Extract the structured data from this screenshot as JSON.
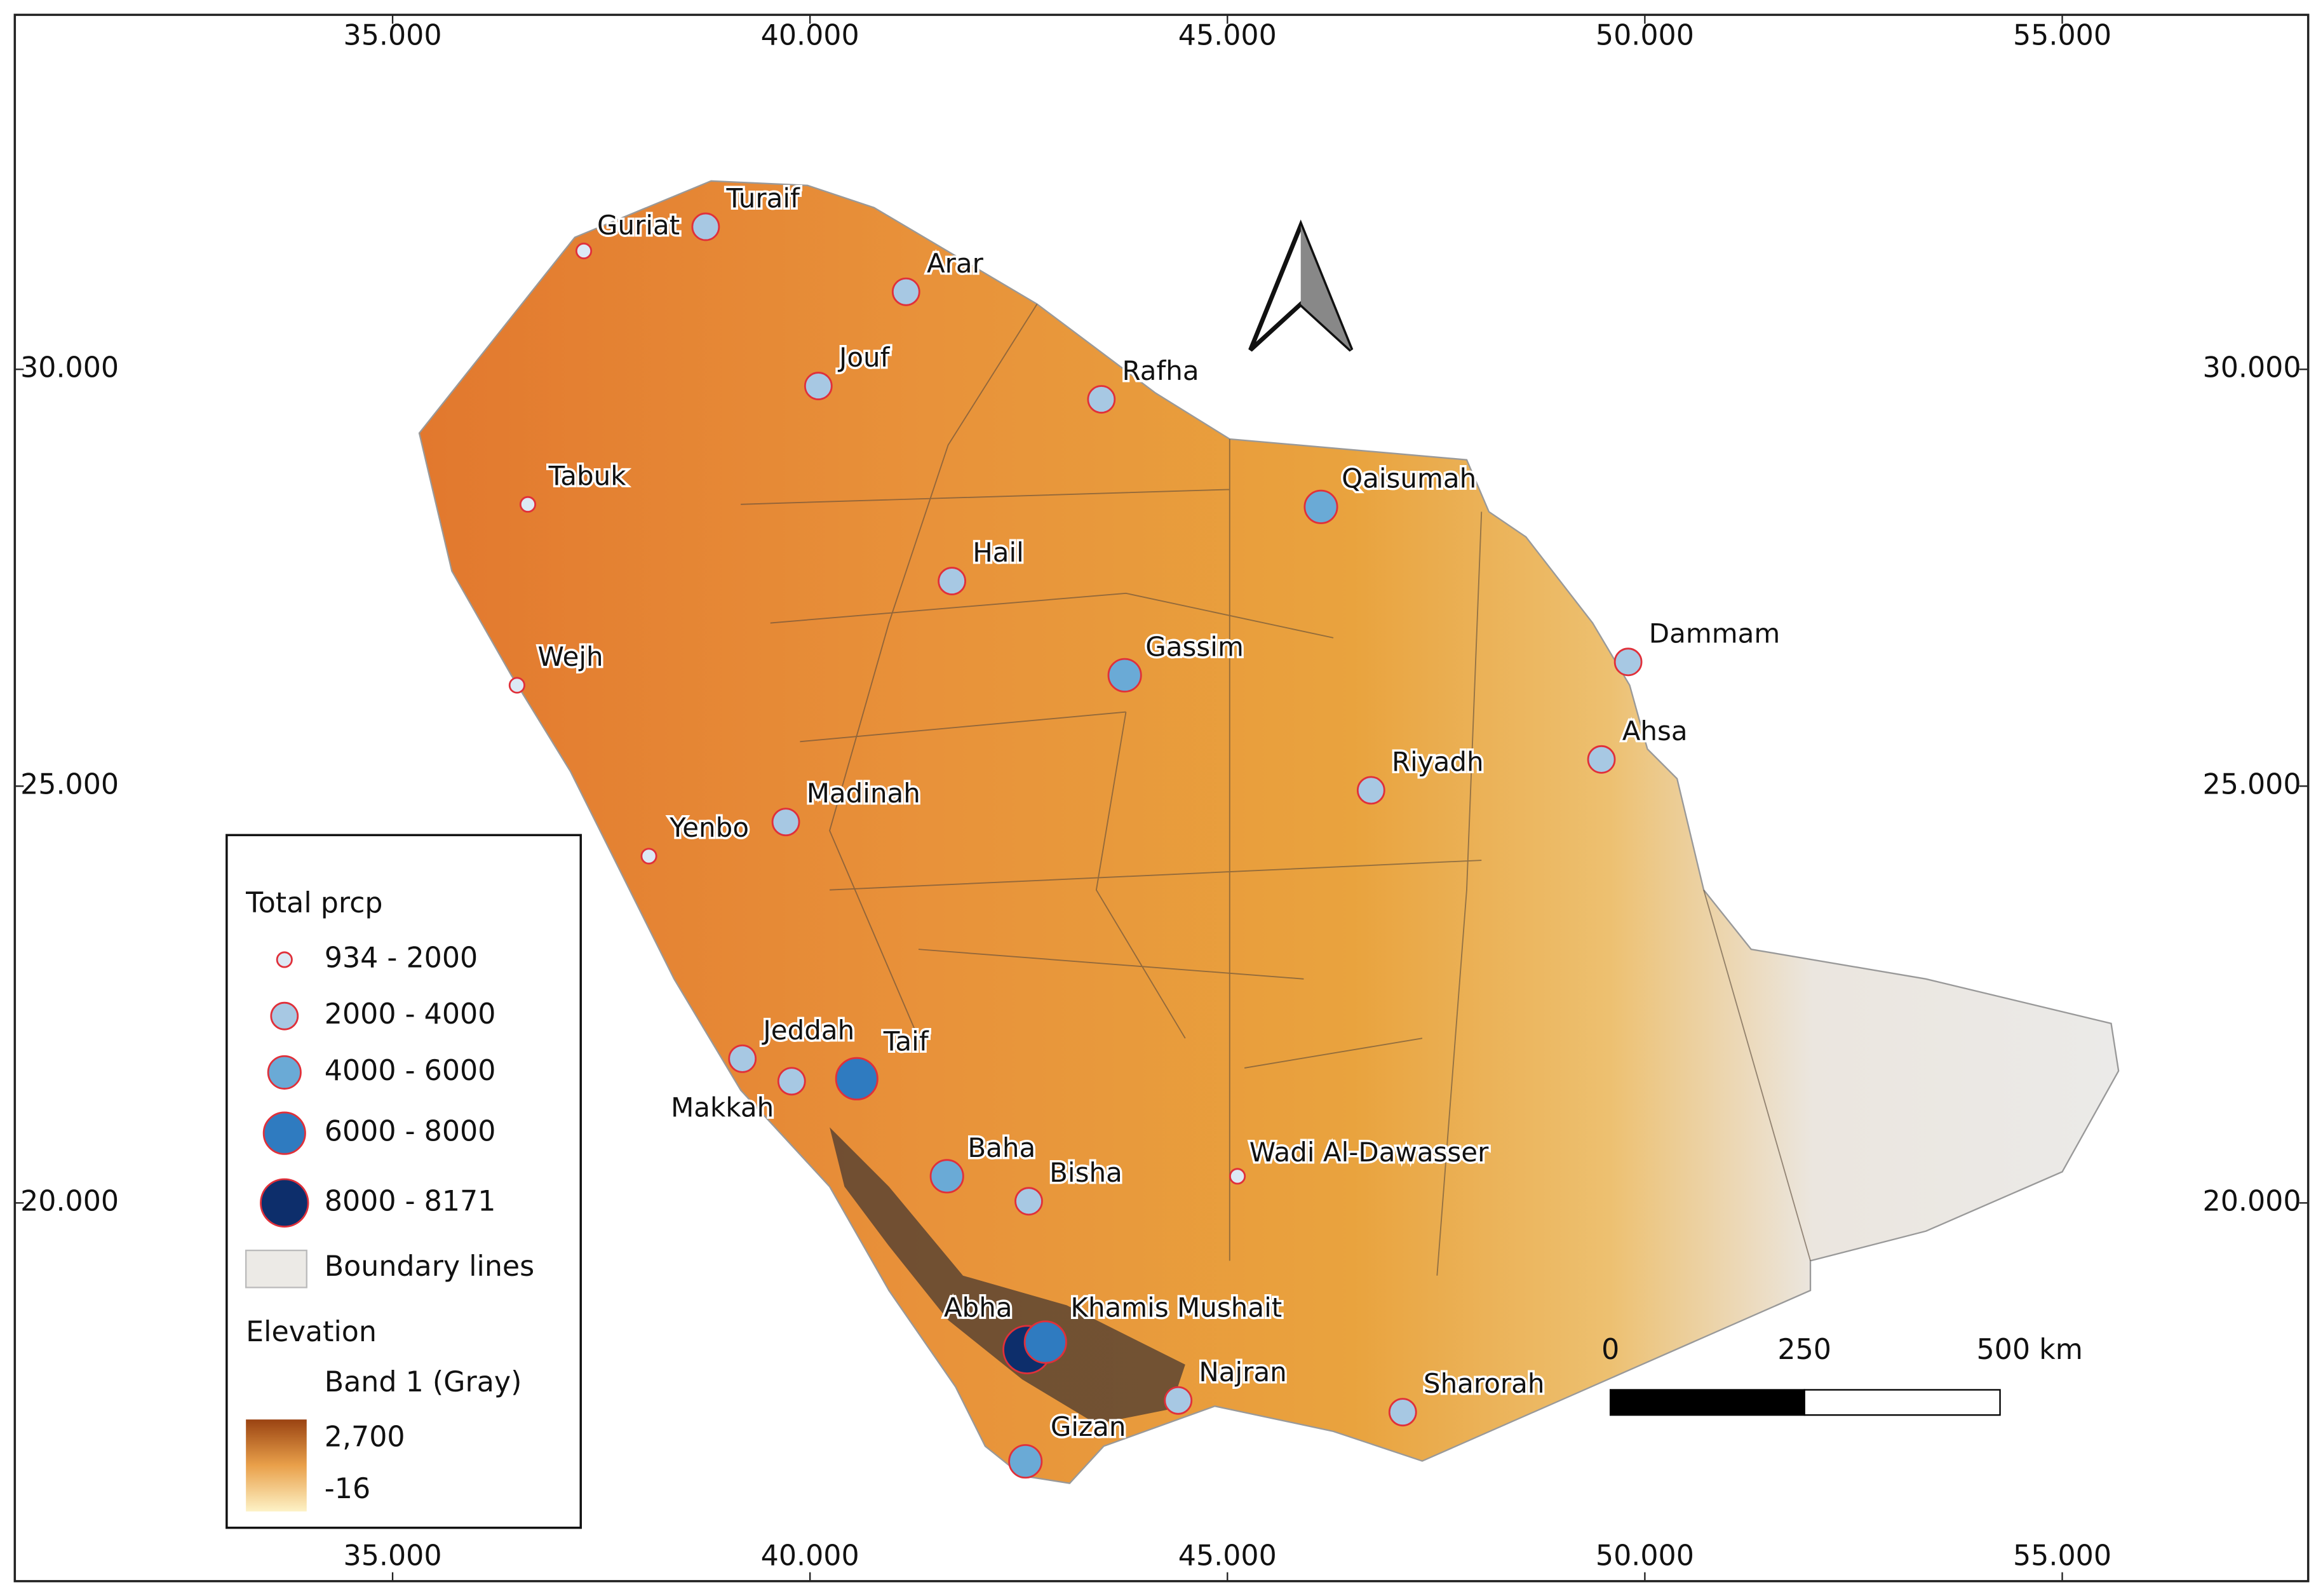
{
  "map": {
    "xticks": [
      {
        "value": 35,
        "label": "35.000"
      },
      {
        "value": 40,
        "label": "40.000"
      },
      {
        "value": 45,
        "label": "45.000"
      },
      {
        "value": 50,
        "label": "50.000"
      },
      {
        "value": 55,
        "label": "55.000"
      }
    ],
    "yticks": [
      {
        "value": 30,
        "label": "30.000"
      },
      {
        "value": 25,
        "label": "25.000"
      },
      {
        "value": 20,
        "label": "20.000"
      }
    ],
    "cities": [
      {
        "name": "Guriat",
        "lon": 37.29,
        "lat": 31.42,
        "class": 0
      },
      {
        "name": "Turaif",
        "lon": 38.75,
        "lat": 31.71,
        "class": 1
      },
      {
        "name": "Arar",
        "lon": 41.15,
        "lat": 30.93,
        "class": 1
      },
      {
        "name": "Jouf",
        "lon": 40.1,
        "lat": 29.8,
        "class": 1
      },
      {
        "name": "Rafha",
        "lon": 43.49,
        "lat": 29.64,
        "class": 1
      },
      {
        "name": "Tabuk",
        "lon": 36.62,
        "lat": 28.38,
        "class": 0
      },
      {
        "name": "Qaisumah",
        "lon": 46.12,
        "lat": 28.35,
        "class": 2
      },
      {
        "name": "Hail",
        "lon": 41.7,
        "lat": 27.46,
        "class": 1
      },
      {
        "name": "Dammam",
        "lon": 49.8,
        "lat": 26.49,
        "class": 1
      },
      {
        "name": "Gassim",
        "lon": 43.77,
        "lat": 26.33,
        "class": 2
      },
      {
        "name": "Wejh",
        "lon": 36.49,
        "lat": 26.21,
        "class": 0
      },
      {
        "name": "Ahsa",
        "lon": 49.48,
        "lat": 25.32,
        "class": 1
      },
      {
        "name": "Riyadh",
        "lon": 46.72,
        "lat": 24.95,
        "class": 1
      },
      {
        "name": "Madinah",
        "lon": 39.71,
        "lat": 24.57,
        "class": 1
      },
      {
        "name": "Yenbo",
        "lon": 38.07,
        "lat": 24.16,
        "class": 0
      },
      {
        "name": "Jeddah",
        "lon": 39.19,
        "lat": 21.73,
        "class": 1
      },
      {
        "name": "Makkah",
        "lon": 39.78,
        "lat": 21.46,
        "class": 1
      },
      {
        "name": "Taif",
        "lon": 40.56,
        "lat": 21.49,
        "class": 3
      },
      {
        "name": "Baha",
        "lon": 41.64,
        "lat": 20.32,
        "class": 2
      },
      {
        "name": "Bisha",
        "lon": 42.62,
        "lat": 20.02,
        "class": 1
      },
      {
        "name": "Wadi Al-Dawasser",
        "lon": 45.12,
        "lat": 20.32,
        "class": 0
      },
      {
        "name": "Abha",
        "lon": 42.6,
        "lat": 18.24,
        "class": 4
      },
      {
        "name": "Khamis Mushait",
        "lon": 42.82,
        "lat": 18.33,
        "class": 3
      },
      {
        "name": "Najran",
        "lon": 44.41,
        "lat": 17.63,
        "class": 1
      },
      {
        "name": "Sharorah",
        "lon": 47.1,
        "lat": 17.49,
        "class": 1
      },
      {
        "name": "Gizan",
        "lon": 42.58,
        "lat": 16.9,
        "class": 2
      }
    ],
    "legend": {
      "title": "Total prcp",
      "classes": [
        {
          "label": "934 - 2000",
          "color": "#dce9f5"
        },
        {
          "label": "2000 - 4000",
          "color": "#a7c8e3"
        },
        {
          "label": "4000 - 6000",
          "color": "#6aaad6"
        },
        {
          "label": "6000 - 8000",
          "color": "#2f7bc0"
        },
        {
          "label": "8000 - 8171",
          "color": "#0d2e6b"
        }
      ],
      "boundary": "Boundary lines",
      "elevation": "Elevation",
      "band": "Band 1 (Gray)",
      "ramp": [
        {
          "value": 2700,
          "label": "2,700"
        },
        -16
      ]
    },
    "scale_bar": [
      "0",
      "250",
      "500 km"
    ]
  }
}
